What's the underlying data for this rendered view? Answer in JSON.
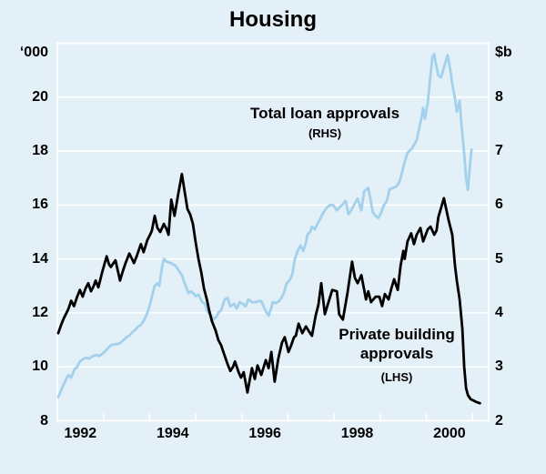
{
  "title": "Housing",
  "colors": {
    "background": "#e3f0f8",
    "grid": "#ffffff",
    "loan_line": "#a3d1ec",
    "building_line": "#000000",
    "text": "#000000"
  },
  "annotations": {
    "loan": {
      "line1": "Total loan approvals",
      "line2": "(RHS)"
    },
    "building": {
      "line1": "Private building",
      "line2": "approvals",
      "line3": "(LHS)"
    }
  },
  "chart_data": {
    "type": "line",
    "title": "Housing",
    "grid": true,
    "left_axis": {
      "unit": "‘000",
      "min": 8,
      "max": 22,
      "tick_step": 2,
      "tick_labels": [
        20,
        18,
        16,
        14,
        12,
        10,
        8
      ]
    },
    "right_axis": {
      "unit": "$b",
      "min": 2,
      "max": 9,
      "tick_step": 1,
      "tick_labels": [
        8,
        7,
        6,
        5,
        4,
        3,
        2
      ]
    },
    "x_axis": {
      "min": 1992,
      "max": 2001.35,
      "year_ticks": [
        1992,
        1993,
        1994,
        1995,
        1996,
        1997,
        1998,
        1999,
        2000,
        2001
      ],
      "labels": [
        1992,
        1994,
        1996,
        1998,
        2000
      ]
    },
    "series": [
      {
        "name": "Total loan approvals",
        "axis": "RHS",
        "unit": "$b",
        "color": "#a3d1ec",
        "points": [
          [
            1992.02,
            2.44
          ],
          [
            1992.1,
            2.6
          ],
          [
            1992.18,
            2.75
          ],
          [
            1992.24,
            2.85
          ],
          [
            1992.3,
            2.8
          ],
          [
            1992.37,
            2.95
          ],
          [
            1992.43,
            3.0
          ],
          [
            1992.49,
            3.1
          ],
          [
            1992.57,
            3.15
          ],
          [
            1992.63,
            3.17
          ],
          [
            1992.69,
            3.15
          ],
          [
            1992.77,
            3.2
          ],
          [
            1992.85,
            3.22
          ],
          [
            1992.91,
            3.2
          ],
          [
            1992.97,
            3.24
          ],
          [
            1993.05,
            3.3
          ],
          [
            1993.1,
            3.35
          ],
          [
            1993.16,
            3.4
          ],
          [
            1993.24,
            3.42
          ],
          [
            1993.3,
            3.42
          ],
          [
            1993.36,
            3.44
          ],
          [
            1993.44,
            3.5
          ],
          [
            1993.5,
            3.55
          ],
          [
            1993.56,
            3.58
          ],
          [
            1993.64,
            3.65
          ],
          [
            1993.7,
            3.7
          ],
          [
            1993.76,
            3.75
          ],
          [
            1993.81,
            3.78
          ],
          [
            1993.87,
            3.85
          ],
          [
            1993.93,
            3.95
          ],
          [
            1993.99,
            4.1
          ],
          [
            1994.05,
            4.3
          ],
          [
            1994.11,
            4.5
          ],
          [
            1994.17,
            4.55
          ],
          [
            1994.21,
            4.5
          ],
          [
            1994.27,
            4.85
          ],
          [
            1994.31,
            5.0
          ],
          [
            1994.37,
            4.95
          ],
          [
            1994.45,
            4.93
          ],
          [
            1994.51,
            4.9
          ],
          [
            1994.56,
            4.88
          ],
          [
            1994.62,
            4.8
          ],
          [
            1994.7,
            4.7
          ],
          [
            1994.76,
            4.55
          ],
          [
            1994.84,
            4.37
          ],
          [
            1994.9,
            4.4
          ],
          [
            1994.96,
            4.35
          ],
          [
            1995.0,
            4.31
          ],
          [
            1995.06,
            4.34
          ],
          [
            1995.14,
            4.2
          ],
          [
            1995.2,
            4.17
          ],
          [
            1995.25,
            4.03
          ],
          [
            1995.33,
            3.95
          ],
          [
            1995.39,
            3.88
          ],
          [
            1995.45,
            3.93
          ],
          [
            1995.49,
            4.0
          ],
          [
            1995.55,
            4.05
          ],
          [
            1995.63,
            4.25
          ],
          [
            1995.69,
            4.28
          ],
          [
            1995.75,
            4.12
          ],
          [
            1995.83,
            4.17
          ],
          [
            1995.89,
            4.08
          ],
          [
            1995.95,
            4.2
          ],
          [
            1996.02,
            4.17
          ],
          [
            1996.08,
            4.12
          ],
          [
            1996.14,
            4.25
          ],
          [
            1996.22,
            4.2
          ],
          [
            1996.3,
            4.2
          ],
          [
            1996.36,
            4.22
          ],
          [
            1996.42,
            4.22
          ],
          [
            1996.48,
            4.1
          ],
          [
            1996.54,
            4.0
          ],
          [
            1996.58,
            3.95
          ],
          [
            1996.64,
            4.1
          ],
          [
            1996.67,
            4.2
          ],
          [
            1996.73,
            4.18
          ],
          [
            1996.81,
            4.22
          ],
          [
            1996.87,
            4.3
          ],
          [
            1996.91,
            4.37
          ],
          [
            1996.97,
            4.55
          ],
          [
            1997.03,
            4.6
          ],
          [
            1997.09,
            4.7
          ],
          [
            1997.15,
            5.0
          ],
          [
            1997.21,
            5.15
          ],
          [
            1997.27,
            5.25
          ],
          [
            1997.33,
            5.15
          ],
          [
            1997.39,
            5.3
          ],
          [
            1997.42,
            5.45
          ],
          [
            1997.48,
            5.5
          ],
          [
            1997.52,
            5.6
          ],
          [
            1997.58,
            5.55
          ],
          [
            1997.64,
            5.65
          ],
          [
            1997.7,
            5.75
          ],
          [
            1997.76,
            5.85
          ],
          [
            1997.8,
            5.9
          ],
          [
            1997.86,
            5.97
          ],
          [
            1997.92,
            6.0
          ],
          [
            1997.98,
            6.0
          ],
          [
            1998.06,
            5.9
          ],
          [
            1998.11,
            5.95
          ],
          [
            1998.17,
            6.0
          ],
          [
            1998.25,
            6.08
          ],
          [
            1998.31,
            5.83
          ],
          [
            1998.37,
            5.9
          ],
          [
            1998.43,
            6.0
          ],
          [
            1998.51,
            6.12
          ],
          [
            1998.59,
            5.9
          ],
          [
            1998.65,
            6.25
          ],
          [
            1998.74,
            6.32
          ],
          [
            1998.84,
            5.86
          ],
          [
            1998.9,
            5.8
          ],
          [
            1998.96,
            5.76
          ],
          [
            1999.02,
            5.86
          ],
          [
            1999.08,
            6.0
          ],
          [
            1999.14,
            6.07
          ],
          [
            1999.2,
            6.29
          ],
          [
            1999.28,
            6.32
          ],
          [
            1999.34,
            6.34
          ],
          [
            1999.4,
            6.4
          ],
          [
            1999.44,
            6.5
          ],
          [
            1999.5,
            6.7
          ],
          [
            1999.53,
            6.8
          ],
          [
            1999.59,
            6.97
          ],
          [
            1999.63,
            7.0
          ],
          [
            1999.69,
            7.05
          ],
          [
            1999.79,
            7.2
          ],
          [
            1999.85,
            7.45
          ],
          [
            1999.89,
            7.6
          ],
          [
            1999.93,
            7.8
          ],
          [
            1999.97,
            7.6
          ],
          [
            2000.03,
            7.9
          ],
          [
            2000.07,
            8.25
          ],
          [
            2000.13,
            8.75
          ],
          [
            2000.17,
            8.8
          ],
          [
            2000.21,
            8.6
          ],
          [
            2000.26,
            8.4
          ],
          [
            2000.32,
            8.37
          ],
          [
            2000.38,
            8.55
          ],
          [
            2000.46,
            8.78
          ],
          [
            2000.52,
            8.5
          ],
          [
            2000.56,
            8.25
          ],
          [
            2000.62,
            7.97
          ],
          [
            2000.66,
            7.73
          ],
          [
            2000.72,
            7.93
          ],
          [
            2000.76,
            7.5
          ],
          [
            2000.82,
            6.95
          ],
          [
            2000.86,
            6.5
          ],
          [
            2000.9,
            6.28
          ],
          [
            2000.94,
            6.7
          ],
          [
            2000.98,
            7.03
          ]
        ]
      },
      {
        "name": "Private building approvals",
        "axis": "LHS",
        "unit": "'000",
        "color": "#000000",
        "points": [
          [
            1992.02,
            11.25
          ],
          [
            1992.08,
            11.55
          ],
          [
            1992.14,
            11.8
          ],
          [
            1992.2,
            12.0
          ],
          [
            1992.24,
            12.15
          ],
          [
            1992.3,
            12.45
          ],
          [
            1992.36,
            12.25
          ],
          [
            1992.43,
            12.6
          ],
          [
            1992.49,
            12.85
          ],
          [
            1992.55,
            12.6
          ],
          [
            1992.61,
            12.9
          ],
          [
            1992.67,
            13.1
          ],
          [
            1992.73,
            12.8
          ],
          [
            1992.79,
            13.0
          ],
          [
            1992.83,
            13.2
          ],
          [
            1992.89,
            12.95
          ],
          [
            1992.97,
            13.5
          ],
          [
            1993.07,
            14.1
          ],
          [
            1993.12,
            13.8
          ],
          [
            1993.16,
            13.7
          ],
          [
            1993.22,
            13.85
          ],
          [
            1993.26,
            13.95
          ],
          [
            1993.32,
            13.5
          ],
          [
            1993.36,
            13.2
          ],
          [
            1993.42,
            13.55
          ],
          [
            1993.48,
            13.85
          ],
          [
            1993.56,
            14.2
          ],
          [
            1993.62,
            14.0
          ],
          [
            1993.66,
            13.85
          ],
          [
            1993.72,
            14.1
          ],
          [
            1993.76,
            14.3
          ],
          [
            1993.81,
            14.55
          ],
          [
            1993.87,
            14.25
          ],
          [
            1993.95,
            14.7
          ],
          [
            1994.01,
            14.9
          ],
          [
            1994.05,
            15.05
          ],
          [
            1994.11,
            15.6
          ],
          [
            1994.17,
            15.15
          ],
          [
            1994.23,
            15.0
          ],
          [
            1994.31,
            15.3
          ],
          [
            1994.37,
            15.1
          ],
          [
            1994.41,
            14.9
          ],
          [
            1994.47,
            16.2
          ],
          [
            1994.54,
            15.6
          ],
          [
            1994.62,
            16.4
          ],
          [
            1994.7,
            17.15
          ],
          [
            1994.76,
            16.5
          ],
          [
            1994.82,
            15.85
          ],
          [
            1994.88,
            15.65
          ],
          [
            1994.94,
            15.3
          ],
          [
            1995.0,
            14.6
          ],
          [
            1995.06,
            14.0
          ],
          [
            1995.12,
            13.5
          ],
          [
            1995.18,
            12.9
          ],
          [
            1995.24,
            12.5
          ],
          [
            1995.29,
            12.1
          ],
          [
            1995.35,
            11.7
          ],
          [
            1995.43,
            11.35
          ],
          [
            1995.49,
            11.0
          ],
          [
            1995.55,
            10.8
          ],
          [
            1995.61,
            10.5
          ],
          [
            1995.69,
            10.1
          ],
          [
            1995.75,
            9.85
          ],
          [
            1995.81,
            10.0
          ],
          [
            1995.85,
            10.2
          ],
          [
            1995.93,
            9.8
          ],
          [
            1995.98,
            9.6
          ],
          [
            1996.04,
            9.8
          ],
          [
            1996.12,
            9.05
          ],
          [
            1996.18,
            9.6
          ],
          [
            1996.22,
            9.95
          ],
          [
            1996.28,
            9.55
          ],
          [
            1996.34,
            10.05
          ],
          [
            1996.42,
            9.7
          ],
          [
            1996.52,
            10.25
          ],
          [
            1996.58,
            9.95
          ],
          [
            1996.64,
            10.55
          ],
          [
            1996.71,
            9.45
          ],
          [
            1996.79,
            10.3
          ],
          [
            1996.87,
            10.9
          ],
          [
            1996.93,
            11.1
          ],
          [
            1997.01,
            10.55
          ],
          [
            1997.07,
            10.8
          ],
          [
            1997.13,
            11.1
          ],
          [
            1997.17,
            11.15
          ],
          [
            1997.23,
            11.6
          ],
          [
            1997.31,
            11.25
          ],
          [
            1997.39,
            11.5
          ],
          [
            1997.46,
            11.3
          ],
          [
            1997.52,
            11.15
          ],
          [
            1997.6,
            11.9
          ],
          [
            1997.66,
            12.3
          ],
          [
            1997.72,
            13.1
          ],
          [
            1997.8,
            11.95
          ],
          [
            1997.86,
            12.3
          ],
          [
            1997.96,
            12.85
          ],
          [
            1998.06,
            12.8
          ],
          [
            1998.11,
            11.95
          ],
          [
            1998.19,
            11.75
          ],
          [
            1998.29,
            12.75
          ],
          [
            1998.39,
            13.9
          ],
          [
            1998.45,
            13.3
          ],
          [
            1998.51,
            13.1
          ],
          [
            1998.59,
            13.4
          ],
          [
            1998.69,
            12.5
          ],
          [
            1998.74,
            12.8
          ],
          [
            1998.8,
            12.4
          ],
          [
            1998.9,
            12.6
          ],
          [
            1998.98,
            12.6
          ],
          [
            1999.04,
            12.25
          ],
          [
            1999.1,
            12.7
          ],
          [
            1999.18,
            12.5
          ],
          [
            1999.24,
            12.9
          ],
          [
            1999.3,
            13.25
          ],
          [
            1999.38,
            12.85
          ],
          [
            1999.44,
            13.75
          ],
          [
            1999.5,
            14.3
          ],
          [
            1999.53,
            14.0
          ],
          [
            1999.59,
            14.65
          ],
          [
            1999.67,
            14.95
          ],
          [
            1999.73,
            14.55
          ],
          [
            1999.79,
            14.9
          ],
          [
            1999.87,
            15.15
          ],
          [
            1999.93,
            14.65
          ],
          [
            2000.03,
            15.1
          ],
          [
            2000.09,
            15.2
          ],
          [
            2000.17,
            14.9
          ],
          [
            2000.22,
            15.05
          ],
          [
            2000.26,
            15.55
          ],
          [
            2000.38,
            16.25
          ],
          [
            2000.48,
            15.45
          ],
          [
            2000.56,
            14.9
          ],
          [
            2000.62,
            13.75
          ],
          [
            2000.66,
            13.2
          ],
          [
            2000.72,
            12.5
          ],
          [
            2000.78,
            11.4
          ],
          [
            2000.82,
            10.0
          ],
          [
            2000.86,
            9.2
          ],
          [
            2000.9,
            8.95
          ],
          [
            2000.96,
            8.8
          ],
          [
            2001.02,
            8.75
          ],
          [
            2001.08,
            8.7
          ],
          [
            2001.16,
            8.65
          ]
        ]
      }
    ]
  }
}
